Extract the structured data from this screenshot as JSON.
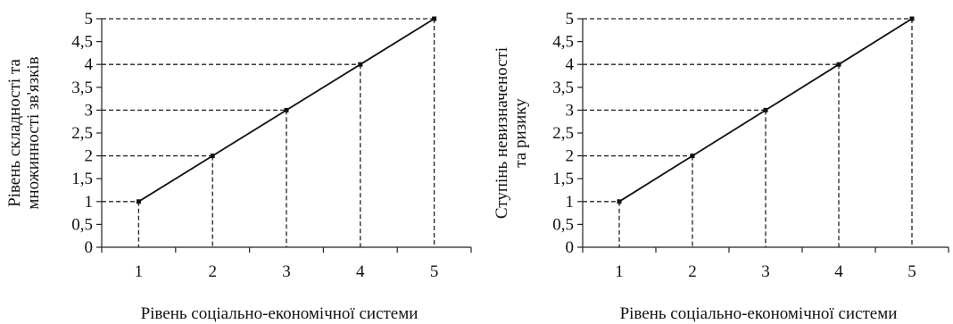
{
  "chart_data": [
    {
      "type": "line",
      "title": "",
      "xlabel": "Рівень соціально-економічної системи",
      "ylabel_lines": [
        "Рівень складності та",
        "множинності зв'язків"
      ],
      "x_categories": [
        "1",
        "2",
        "3",
        "4",
        "5"
      ],
      "y_ticks": [
        "0",
        "0,5",
        "1",
        "1,5",
        "2",
        "2,5",
        "3",
        "3,5",
        "4",
        "4,5",
        "5"
      ],
      "ylim": [
        0,
        5
      ],
      "series": [
        {
          "x": [
            1,
            2,
            3,
            4,
            5
          ],
          "y": [
            1,
            2,
            3,
            4,
            5
          ]
        }
      ],
      "dashed_guides": true,
      "line_color": "#111111"
    },
    {
      "type": "line",
      "title": "",
      "xlabel": "Рівень соціально-економічної системи",
      "ylabel_lines": [
        "Ступінь невизначеності",
        "та ризику"
      ],
      "x_categories": [
        "1",
        "2",
        "3",
        "4",
        "5"
      ],
      "y_ticks": [
        "0",
        "0,5",
        "1",
        "1,5",
        "2",
        "2,5",
        "3",
        "3,5",
        "4",
        "4,5",
        "5"
      ],
      "ylim": [
        0,
        5
      ],
      "series": [
        {
          "x": [
            1,
            2,
            3,
            4,
            5
          ],
          "y": [
            1,
            2,
            3,
            4,
            5
          ]
        }
      ],
      "dashed_guides": true,
      "line_color": "#111111"
    }
  ]
}
